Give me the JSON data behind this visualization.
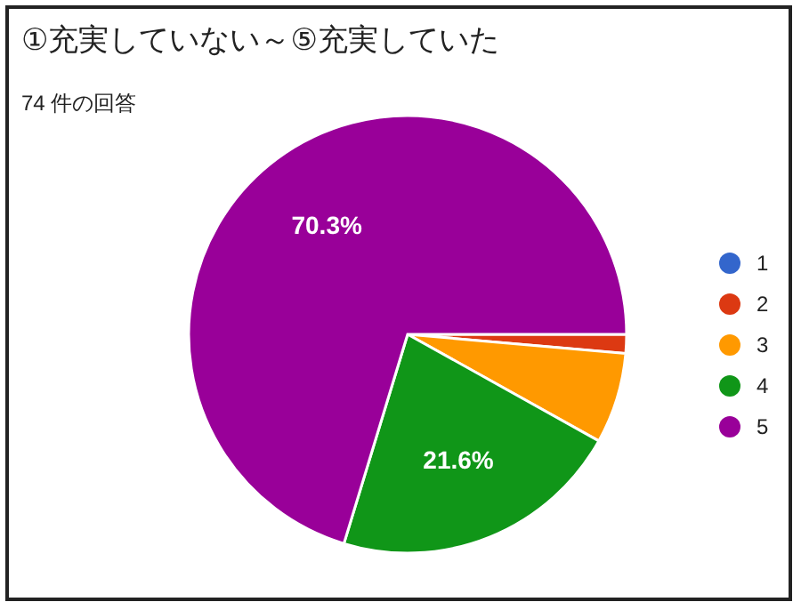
{
  "chart_data": {
    "type": "pie",
    "title": "①充実していない～⑤充実していた",
    "subtitle": "74 件の回答",
    "categories": [
      "1",
      "2",
      "3",
      "4",
      "5"
    ],
    "values": [
      0,
      1.4,
      6.7,
      21.6,
      70.3
    ],
    "colors": [
      "#3366cc",
      "#dc3912",
      "#ff9900",
      "#109618",
      "#990099"
    ],
    "value_labels": [
      null,
      null,
      null,
      "21.6%",
      "70.3%"
    ],
    "legend": "right"
  }
}
